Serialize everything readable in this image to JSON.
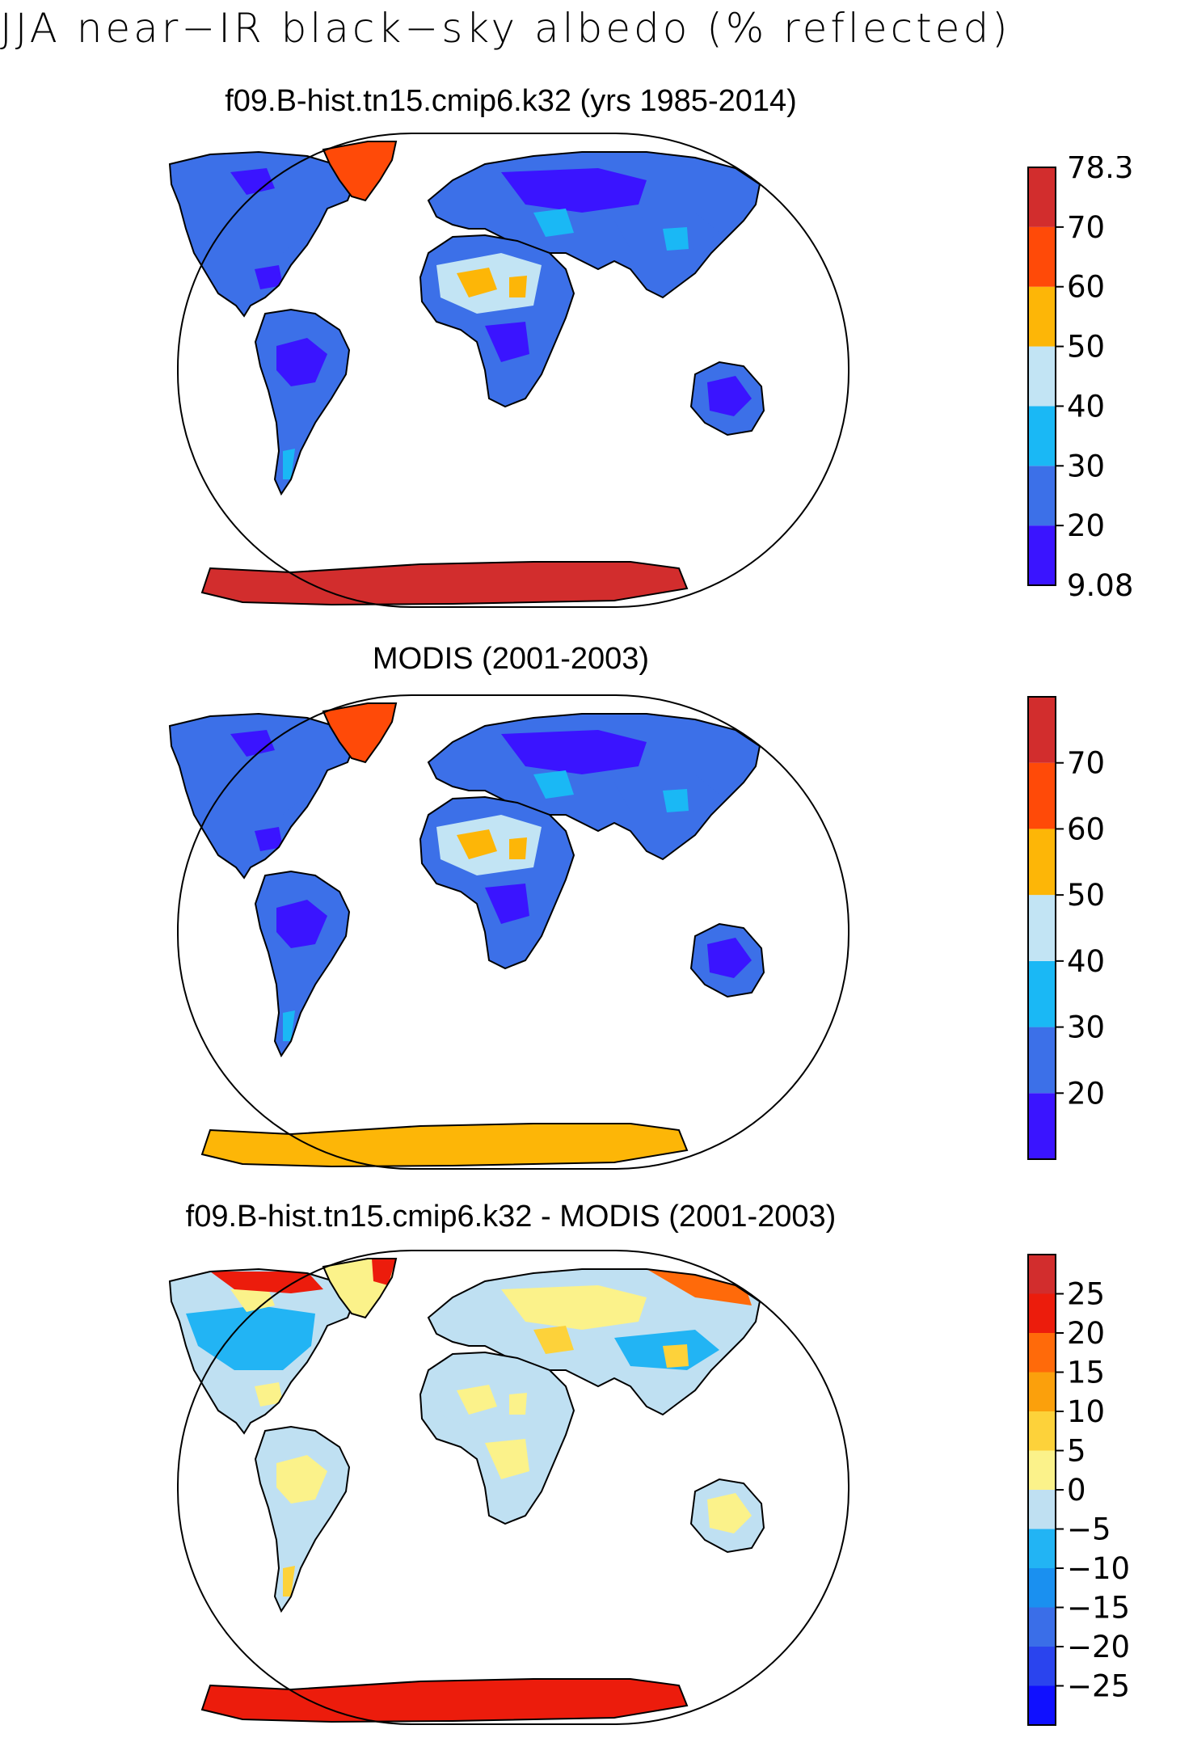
{
  "figure_title": "JJA near−IR black−sky albedo (% reflected)",
  "panels": [
    {
      "title": "f09.B-hist.tn15.cmip6.k32 (yrs 1985-2014)",
      "colorbar": {
        "colors": [
          "#3a14ff",
          "#3c70e8",
          "#1ab8f5",
          "#c2e4f4",
          "#fdb607",
          "#ff4a08",
          "#d22d2d"
        ],
        "boundary_labels": [
          "9.08",
          "20",
          "30",
          "40",
          "50",
          "60",
          "70",
          "78.3"
        ]
      },
      "antarctica_color": "#d22d2d",
      "greenland_color": "#ff4a08"
    },
    {
      "title": "MODIS (2001-2003)",
      "colorbar": {
        "colors": [
          "#3a14ff",
          "#3c70e8",
          "#1ab8f5",
          "#c2e4f4",
          "#fdb607",
          "#ff4a08",
          "#d22d2d"
        ],
        "boundary_labels": [
          "",
          "20",
          "30",
          "40",
          "50",
          "60",
          "70",
          ""
        ]
      },
      "antarctica_color": "#fdb607",
      "greenland_color": "#ff4a08"
    },
    {
      "title": "f09.B-hist.tn15.cmip6.k32 - MODIS (2001-2003)",
      "colorbar": {
        "colors": [
          "#1010ff",
          "#2a44ee",
          "#3a6ee8",
          "#1a90f0",
          "#22b4f4",
          "#bfe0f2",
          "#fbf28a",
          "#fdd23a",
          "#fba00c",
          "#ff6a0a",
          "#ec1c0c",
          "#d22d2d"
        ],
        "boundary_labels": [
          "",
          "−25",
          "−20",
          "−15",
          "−10",
          "−5",
          "0",
          "5",
          "10",
          "15",
          "20",
          "25",
          ""
        ]
      },
      "antarctica_color": "#ec1c0c",
      "greenland_color": "#fbf28a"
    }
  ]
}
